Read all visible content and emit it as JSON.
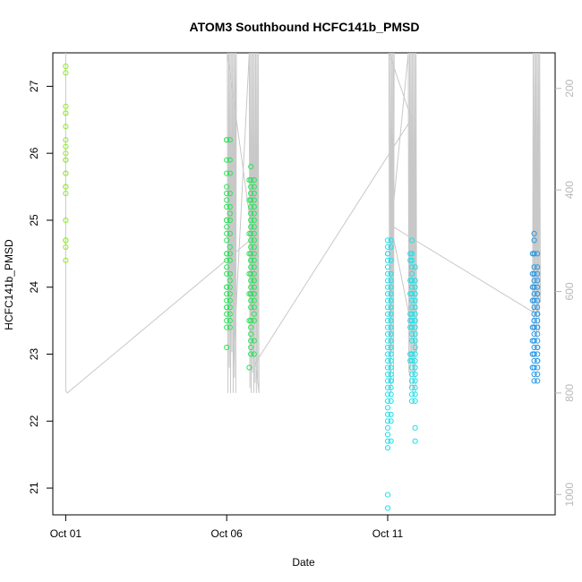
{
  "chart_data": {
    "type": "scatter",
    "title": "ATOM3 Southbound HCFC141b_PMSD",
    "xlabel": "Date",
    "ylabel": "HCFC141b_PMSD",
    "x_ticks": [
      {
        "label": "Oct 01",
        "day": 1.0
      },
      {
        "label": "Oct 06",
        "day": 6.0
      },
      {
        "label": "Oct 11",
        "day": 11.0
      }
    ],
    "xlim": [
      0.6,
      16.2
    ],
    "ylim": [
      20.6,
      27.5
    ],
    "y_ticks": [
      21,
      22,
      23,
      24,
      25,
      26,
      27
    ],
    "secondary_axis": {
      "side": "right",
      "ticks": [
        200,
        400,
        600,
        800,
        1000
      ],
      "lim": [
        130,
        1040
      ],
      "reversed": true,
      "color": "#b8b8b8",
      "line_color": "#c8c8c8"
    },
    "point_colors": [
      "#94e838",
      "#2fe05a",
      "#1de0ea",
      "#2a99e6"
    ],
    "grid": false,
    "series": [
      {
        "color": "#94e838",
        "x": [
          1.0,
          1.0,
          1.0,
          1.0,
          1.0,
          1.0,
          1.0,
          1.0,
          1.0,
          1.0,
          1.0,
          1.0,
          1.0,
          1.0,
          1.0,
          1.0,
          1.0,
          1.0,
          1.0,
          1.0,
          1.0
        ],
        "y": [
          27.3,
          27.2,
          26.7,
          26.6,
          26.6,
          26.4,
          26.2,
          26.1,
          26.0,
          25.9,
          25.9,
          25.7,
          25.7,
          25.5,
          25.5,
          25.4,
          25.0,
          24.7,
          24.7,
          24.6,
          24.4
        ]
      },
      {
        "color": "#2fe05a",
        "x": [
          6.0,
          6.0,
          6.0,
          6.0,
          6.0,
          6.0,
          6.0,
          6.0,
          6.0,
          6.0,
          6.0,
          6.0,
          6.0,
          6.0,
          6.0,
          6.0,
          6.0,
          6.0,
          6.0,
          6.0,
          6.0,
          6.0,
          6.0,
          6.0,
          6.0,
          6.0,
          6.0,
          6.0,
          6.1,
          6.1,
          6.1,
          6.1,
          6.1,
          6.1,
          6.1,
          6.1,
          6.1,
          6.1,
          6.1,
          6.1,
          6.1,
          6.1,
          6.1,
          6.1,
          6.1,
          6.1,
          6.1,
          6.1
        ],
        "y": [
          26.2,
          26.2,
          25.9,
          25.7,
          25.5,
          25.4,
          25.3,
          25.2,
          25.0,
          25.0,
          24.9,
          24.8,
          24.7,
          24.5,
          24.5,
          24.4,
          24.3,
          24.2,
          24.0,
          24.0,
          23.9,
          23.8,
          23.7,
          23.7,
          23.6,
          23.5,
          23.4,
          23.1,
          26.2,
          25.9,
          25.7,
          25.4,
          25.2,
          25.0,
          24.8,
          24.5,
          24.2,
          24.0,
          23.9,
          23.7,
          23.5,
          23.4,
          24.6,
          24.1,
          23.8,
          23.6,
          25.1,
          24.4
        ]
      },
      {
        "color": "#2fe05a",
        "x": [
          6.75,
          6.75,
          6.75,
          6.75,
          6.75,
          6.75,
          6.75,
          6.75,
          6.75,
          6.75,
          6.75,
          6.75,
          6.75,
          6.75,
          6.75,
          6.75,
          6.75,
          6.75,
          6.75,
          6.75,
          6.75,
          6.75,
          6.75,
          6.75,
          6.75,
          6.75,
          6.75,
          6.75,
          6.75,
          6.85,
          6.85,
          6.85,
          6.85,
          6.85,
          6.85,
          6.85,
          6.85,
          6.85,
          6.85,
          6.85,
          6.85,
          6.85,
          6.85,
          6.85,
          6.85,
          6.85,
          6.85,
          6.85,
          6.85,
          6.85,
          6.85,
          6.85,
          6.85,
          6.85,
          6.85,
          6.7,
          6.7,
          6.7,
          6.7,
          6.7,
          6.7,
          6.7,
          6.7
        ],
        "y": [
          25.8,
          25.6,
          25.5,
          25.4,
          25.3,
          25.2,
          25.1,
          25.0,
          24.9,
          24.8,
          24.7,
          24.6,
          24.5,
          24.4,
          24.4,
          24.3,
          24.2,
          24.1,
          24.0,
          23.9,
          23.9,
          23.8,
          23.7,
          23.5,
          23.4,
          23.3,
          23.2,
          23.1,
          23.0,
          25.6,
          25.5,
          25.4,
          25.2,
          25.0,
          24.9,
          24.7,
          24.5,
          24.4,
          24.3,
          24.2,
          24.1,
          24.0,
          23.9,
          23.8,
          23.7,
          23.5,
          23.2,
          23.0,
          24.6,
          24.8,
          25.1,
          25.3,
          24.1,
          23.9,
          23.6,
          25.6,
          25.3,
          24.8,
          24.5,
          24.2,
          23.9,
          23.5,
          22.8
        ]
      },
      {
        "color": "#1de0ea",
        "x": [
          11.0,
          11.0,
          11.0,
          11.0,
          11.0,
          11.0,
          11.0,
          11.0,
          11.0,
          11.0,
          11.0,
          11.0,
          11.0,
          11.0,
          11.0,
          11.0,
          11.0,
          11.0,
          11.0,
          11.0,
          11.0,
          11.0,
          11.0,
          11.0,
          11.0,
          11.0,
          11.0,
          11.0,
          11.0,
          11.0,
          11.0,
          11.0,
          11.0,
          11.0,
          11.0,
          11.1,
          11.1,
          11.1,
          11.1,
          11.1,
          11.1,
          11.1,
          11.1,
          11.1,
          11.1,
          11.1,
          11.1,
          11.1,
          11.1,
          11.1,
          11.1,
          11.1,
          11.1,
          11.1,
          11.1,
          11.1,
          11.1,
          11.1,
          11.1,
          11.1,
          11.1,
          11.1
        ],
        "y": [
          24.7,
          24.6,
          24.5,
          24.4,
          24.3,
          24.2,
          24.1,
          24.0,
          23.9,
          23.8,
          23.7,
          23.6,
          23.5,
          23.4,
          23.3,
          23.2,
          23.1,
          23.0,
          22.9,
          22.8,
          22.7,
          22.6,
          22.5,
          22.4,
          22.3,
          22.2,
          22.1,
          22.0,
          21.9,
          21.8,
          21.7,
          21.6,
          20.9,
          20.7,
          24.5,
          24.7,
          24.6,
          24.4,
          24.2,
          24.1,
          24.0,
          23.8,
          23.6,
          23.5,
          23.4,
          23.3,
          23.2,
          23.0,
          22.9,
          22.8,
          22.7,
          22.6,
          22.5,
          22.4,
          22.3,
          22.1,
          22.0,
          21.7,
          23.9,
          23.7,
          23.1,
          22.6
        ]
      },
      {
        "color": "#1de0ea",
        "x": [
          11.75,
          11.75,
          11.75,
          11.75,
          11.75,
          11.75,
          11.75,
          11.75,
          11.75,
          11.75,
          11.75,
          11.75,
          11.75,
          11.75,
          11.75,
          11.75,
          11.75,
          11.75,
          11.75,
          11.75,
          11.75,
          11.75,
          11.75,
          11.85,
          11.85,
          11.85,
          11.85,
          11.85,
          11.85,
          11.85,
          11.85,
          11.85,
          11.85,
          11.85,
          11.85,
          11.85,
          11.85,
          11.85,
          11.85,
          11.85,
          11.85,
          11.85,
          11.85,
          11.85,
          11.85,
          11.85,
          11.7,
          11.7,
          11.7,
          11.7,
          11.7,
          11.7,
          11.7,
          11.7,
          11.7
        ],
        "y": [
          24.7,
          24.5,
          24.3,
          24.1,
          24.0,
          23.9,
          23.7,
          23.6,
          23.5,
          23.4,
          23.3,
          23.2,
          23.0,
          22.9,
          22.8,
          22.7,
          22.6,
          22.5,
          22.4,
          22.3,
          24.4,
          24.2,
          23.8,
          24.1,
          24.0,
          23.9,
          23.8,
          23.7,
          23.6,
          23.5,
          23.4,
          23.3,
          23.2,
          23.1,
          23.0,
          22.9,
          22.8,
          22.7,
          22.6,
          22.5,
          22.4,
          22.3,
          21.9,
          21.7,
          23.5,
          24.3,
          24.5,
          24.4,
          24.1,
          23.9,
          23.5,
          23.4,
          23.0,
          22.9,
          23.6
        ]
      },
      {
        "color": "#2a99e6",
        "x": [
          15.55,
          15.55,
          15.55,
          15.55,
          15.55,
          15.55,
          15.55,
          15.55,
          15.55,
          15.55,
          15.55,
          15.55,
          15.55,
          15.55,
          15.55,
          15.55,
          15.55,
          15.55,
          15.55,
          15.55,
          15.55,
          15.55,
          15.55,
          15.55,
          15.55,
          15.55,
          15.55,
          15.65,
          15.65,
          15.65,
          15.65,
          15.65,
          15.65,
          15.65,
          15.65,
          15.65,
          15.65,
          15.65,
          15.65,
          15.65,
          15.65,
          15.65,
          15.65,
          15.65,
          15.65,
          15.65,
          15.65,
          15.65,
          15.65,
          15.65,
          15.65,
          15.5,
          15.5,
          15.5,
          15.5,
          15.5,
          15.5,
          15.5,
          15.5
        ],
        "y": [
          24.8,
          24.7,
          24.5,
          24.5,
          24.3,
          24.2,
          24.1,
          24.0,
          24.0,
          23.9,
          23.8,
          23.7,
          23.6,
          23.5,
          23.4,
          23.4,
          23.3,
          23.2,
          23.1,
          23.0,
          23.0,
          22.9,
          22.8,
          22.7,
          22.6,
          23.2,
          23.5,
          24.5,
          24.3,
          24.1,
          24.0,
          23.9,
          23.8,
          23.7,
          23.6,
          23.5,
          23.4,
          23.3,
          23.2,
          23.1,
          23.0,
          22.9,
          22.8,
          22.7,
          22.6,
          24.2,
          23.9,
          23.6,
          23.4,
          23.1,
          22.9,
          24.5,
          24.2,
          23.8,
          23.4,
          23.2,
          23.0,
          22.8,
          24.0
        ]
      }
    ],
    "secondary_line": {
      "x": [
        1.0,
        1.0,
        1.05,
        6.8,
        6.8,
        6.02,
        6.04,
        6.06,
        6.08,
        6.1,
        6.12,
        6.14,
        6.16,
        6.18,
        6.2,
        6.22,
        6.24,
        6.26,
        6.28,
        6.3,
        6.2,
        6.7,
        6.72,
        6.74,
        6.76,
        6.78,
        6.8,
        6.82,
        6.84,
        6.86,
        6.88,
        6.9,
        6.92,
        6.94,
        6.96,
        6.98,
        7.0,
        6.9,
        11.74,
        11.74,
        11.04,
        11.06,
        11.08,
        11.1,
        11.12,
        11.14,
        11.16,
        11.18,
        11.2,
        11.1,
        11.64,
        11.66,
        11.68,
        11.7,
        11.72,
        11.74,
        11.76,
        11.78,
        11.8,
        11.82,
        11.84,
        11.86,
        11.88,
        11.9,
        11.1,
        15.5,
        15.52,
        15.54,
        15.56,
        15.58,
        15.6,
        15.62,
        15.64,
        15.66,
        15.68,
        15.7,
        15.72,
        15.74,
        15.5
      ],
      "y": [
        130,
        795,
        800,
        495,
        495,
        130,
        800,
        130,
        750,
        130,
        800,
        130,
        720,
        130,
        800,
        130,
        770,
        130,
        800,
        130,
        745,
        130,
        790,
        130,
        800,
        130,
        760,
        130,
        800,
        130,
        780,
        130,
        800,
        130,
        780,
        130,
        800,
        740,
        260,
        260,
        130,
        780,
        130,
        800,
        130,
        720,
        130,
        780,
        130,
        480,
        130,
        760,
        130,
        790,
        130,
        740,
        130,
        800,
        130,
        760,
        130,
        800,
        130,
        720,
        470,
        640,
        130,
        680,
        130,
        620,
        130,
        700,
        130,
        640,
        130,
        680,
        130,
        620,
        640
      ]
    }
  }
}
